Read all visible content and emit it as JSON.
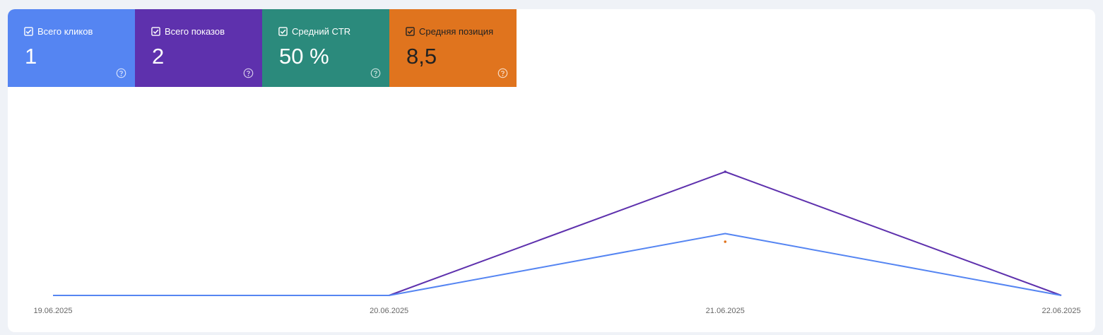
{
  "metrics": [
    {
      "label": "Всего кликов",
      "value": "1",
      "color": "#5585f2",
      "checked": true
    },
    {
      "label": "Всего показов",
      "value": "2",
      "color": "#5e31ad",
      "checked": true
    },
    {
      "label": "Средний CTR",
      "value": "50 %",
      "color": "#2b8a7c",
      "checked": true
    },
    {
      "label": "Средняя позиция",
      "value": "8,5",
      "color": "#e0741e",
      "checked": true
    }
  ],
  "icons": {
    "checkbox": "checkbox-checked-icon",
    "help": "help-circle-icon"
  },
  "chart_data": {
    "type": "line",
    "categories": [
      "19.06.2025",
      "20.06.2025",
      "21.06.2025",
      "22.06.2025"
    ],
    "series": [
      {
        "values": [
          0,
          0,
          2,
          0
        ],
        "color": "#5e31ad"
      },
      {
        "values": [
          0,
          0,
          1,
          0
        ],
        "color": "#5585f2"
      },
      {
        "values": [
          null,
          null,
          8.5,
          null
        ],
        "color": "#e0741e"
      }
    ]
  }
}
